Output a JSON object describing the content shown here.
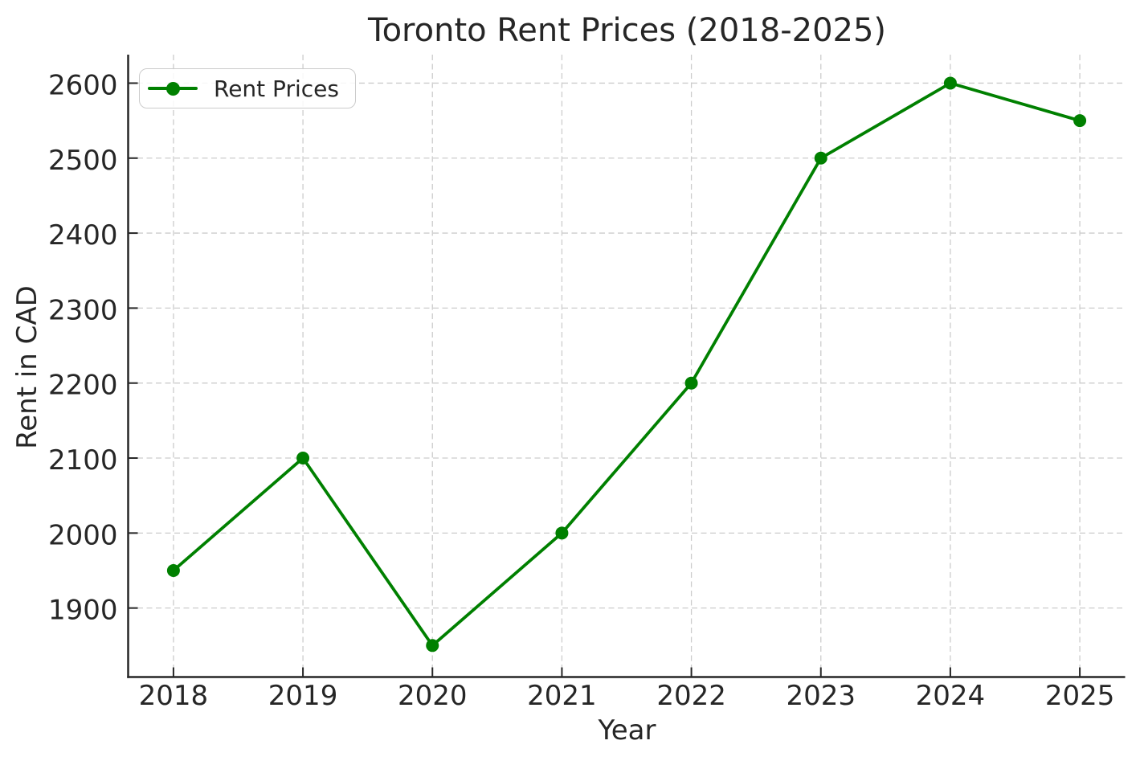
{
  "chart_data": {
    "type": "line",
    "title": "Toronto Rent Prices (2018-2025)",
    "xlabel": "Year",
    "ylabel": "Rent in CAD",
    "x": [
      2018,
      2019,
      2020,
      2021,
      2022,
      2023,
      2024,
      2025
    ],
    "x_tick_labels": [
      "2018",
      "2019",
      "2020",
      "2021",
      "2022",
      "2023",
      "2024",
      "2025"
    ],
    "y_ticks": [
      1900,
      2000,
      2100,
      2200,
      2300,
      2400,
      2500,
      2600
    ],
    "xlim": [
      2017.65,
      2025.35
    ],
    "ylim": [
      1808,
      2638
    ],
    "grid": true,
    "grid_line_style": "dashed",
    "series": [
      {
        "name": "Rent Prices",
        "values": [
          1950,
          2100,
          1850,
          2000,
          2200,
          2500,
          2600,
          2550
        ],
        "color": "#008000",
        "marker": "circle"
      }
    ],
    "legend": {
      "position": "upper left",
      "entries": [
        "Rent Prices"
      ]
    }
  },
  "colors": {
    "line": "#008000",
    "grid": "#cccccc",
    "axis": "#262626",
    "text": "#262626",
    "legend_border": "#cccccc",
    "background": "#ffffff"
  }
}
